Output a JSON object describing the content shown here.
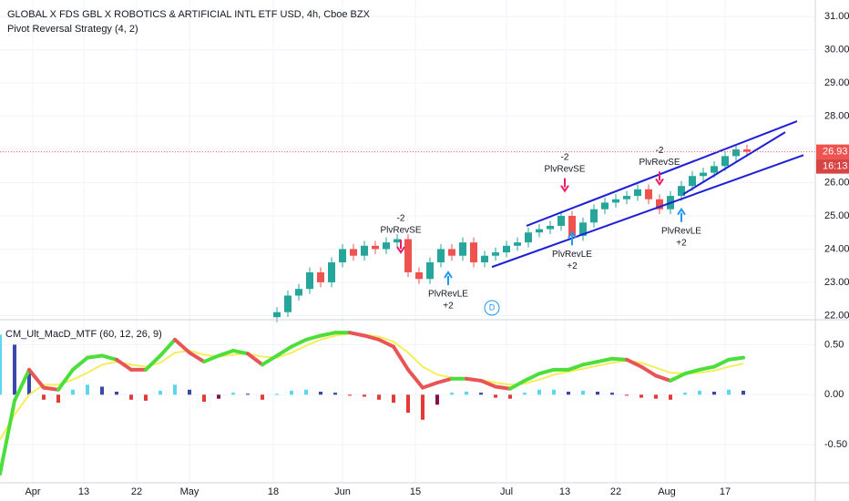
{
  "chart_data": [
    {
      "type": "candlestick",
      "title": "GLOBAL X FDS GBL X ROBOTICS & ARTIFICIAL INTL ETF USD, 4h, Cboe BZX",
      "subtitle": "Pivot Reversal Strategy (4, 2)",
      "x": [
        76,
        79,
        82,
        85,
        88,
        91,
        94,
        97,
        100,
        103,
        106,
        109,
        112,
        115,
        118,
        121,
        124,
        127,
        130,
        133,
        136,
        139,
        142,
        145,
        148,
        151,
        154,
        157,
        160,
        163,
        166,
        169,
        172,
        175,
        178,
        181,
        184,
        187,
        190,
        193,
        196,
        199,
        202,
        205
      ],
      "open": [
        21.95,
        22.1,
        22.6,
        22.8,
        23.3,
        23.0,
        23.6,
        24.0,
        23.8,
        24.1,
        24.0,
        24.2,
        24.3,
        23.3,
        23.1,
        23.6,
        24.0,
        23.8,
        24.2,
        23.6,
        23.8,
        23.9,
        24.1,
        24.2,
        24.5,
        24.6,
        24.7,
        25.0,
        24.4,
        24.8,
        25.2,
        25.4,
        25.5,
        25.6,
        25.8,
        25.5,
        25.2,
        25.6,
        25.9,
        26.2,
        26.3,
        26.5,
        26.8,
        27.0
      ],
      "high": [
        22.25,
        22.75,
        22.95,
        23.45,
        23.45,
        23.75,
        24.15,
        24.15,
        24.25,
        24.25,
        24.35,
        24.45,
        24.45,
        23.45,
        23.75,
        24.15,
        24.15,
        24.35,
        24.35,
        23.95,
        24.05,
        24.25,
        24.35,
        24.65,
        24.75,
        24.85,
        25.15,
        25.15,
        24.95,
        25.35,
        25.55,
        25.65,
        25.75,
        25.95,
        25.95,
        25.65,
        25.75,
        26.05,
        26.35,
        26.45,
        26.65,
        26.95,
        27.15,
        27.15
      ],
      "low": [
        21.8,
        21.95,
        22.45,
        22.65,
        22.85,
        22.85,
        23.45,
        23.65,
        23.65,
        23.85,
        23.85,
        24.05,
        23.15,
        22.95,
        22.95,
        23.45,
        23.65,
        23.65,
        23.45,
        23.45,
        23.65,
        23.75,
        23.95,
        24.05,
        24.35,
        24.45,
        24.55,
        24.25,
        24.25,
        24.65,
        25.05,
        25.25,
        25.35,
        25.45,
        25.35,
        25.05,
        25.05,
        25.45,
        25.75,
        26.05,
        26.15,
        26.35,
        26.65,
        26.78
      ],
      "close": [
        22.1,
        22.6,
        22.8,
        23.3,
        23.0,
        23.6,
        24.0,
        23.8,
        24.1,
        24.0,
        24.2,
        24.3,
        23.3,
        23.1,
        23.6,
        24.0,
        23.8,
        24.2,
        23.6,
        23.8,
        23.9,
        24.1,
        24.2,
        24.5,
        24.6,
        24.7,
        25.0,
        24.4,
        24.8,
        25.2,
        25.4,
        25.5,
        25.6,
        25.8,
        25.5,
        25.2,
        25.6,
        25.9,
        26.2,
        26.3,
        26.5,
        26.8,
        27.0,
        26.93
      ],
      "up_color": "#26a69a",
      "down_color": "#ef5350",
      "xlim": [
        0,
        223.75
      ],
      "xticks": [
        {
          "value": 9,
          "label": "Apr"
        },
        {
          "value": 23,
          "label": "13"
        },
        {
          "value": 37.5,
          "label": "22"
        },
        {
          "value": 52,
          "label": "May"
        },
        {
          "value": 75,
          "label": "18"
        },
        {
          "value": 94,
          "label": "Jun"
        },
        {
          "value": 114,
          "label": "15"
        },
        {
          "value": 139,
          "label": "Jul"
        },
        {
          "value": 155,
          "label": "13"
        },
        {
          "value": 169,
          "label": "22"
        },
        {
          "value": 183,
          "label": "Aug"
        },
        {
          "value": 199,
          "label": "17"
        }
      ],
      "ylim": [
        21.9,
        31.5
      ],
      "yticks": [
        {
          "value": 22,
          "label": "22.00"
        },
        {
          "value": 23,
          "label": "23.00"
        },
        {
          "value": 24,
          "label": "24.00"
        },
        {
          "value": 25,
          "label": "25.00"
        },
        {
          "value": 26,
          "label": "26.00"
        },
        {
          "value": 27,
          "label": "27.00"
        },
        {
          "value": 28,
          "label": "28.00"
        },
        {
          "value": 29,
          "label": "29.00"
        },
        {
          "value": 30,
          "label": "30.00"
        },
        {
          "value": 31,
          "label": "31.00"
        }
      ],
      "grid": true,
      "last_price": 26.93,
      "countdown": "16:13",
      "trendlines": [
        {
          "x": [
            144.5,
            218.75
          ],
          "y": [
            24.7,
            27.85
          ]
        },
        {
          "x": [
            135,
            220.5
          ],
          "y": [
            23.46,
            26.83
          ]
        },
        {
          "x": [
            187.5,
            215.5
          ],
          "y": [
            25.65,
            27.52
          ]
        }
      ],
      "trendline_color": "#1f1fd6",
      "annotations": [
        {
          "x": 110,
          "price": 23.9,
          "side": "short",
          "label": "PlvRevSE",
          "qty": "-2"
        },
        {
          "x": 123,
          "price": 23.3,
          "side": "long",
          "label": "PlvRevLE",
          "qty": "+2"
        },
        {
          "x": 155,
          "price": 25.75,
          "side": "short",
          "label": "PlvRevSE",
          "qty": "-2"
        },
        {
          "x": 157,
          "price": 24.5,
          "side": "long",
          "label": "PlvRevLE",
          "qty": "+2"
        },
        {
          "x": 181,
          "price": 25.95,
          "side": "short",
          "label": "PlvRevSE",
          "qty": "-2"
        },
        {
          "x": 187,
          "price": 25.2,
          "side": "long",
          "label": "PlvRevLE",
          "qty": "+2"
        }
      ],
      "marker": {
        "x": 135,
        "label": "D"
      }
    },
    {
      "type": "macd",
      "title": "CM_Ult_MacD_MTF (60, 12, 26, 9)",
      "x": [
        0,
        4,
        8,
        12,
        16,
        20,
        24,
        28,
        32,
        36,
        40,
        44,
        48,
        52,
        56,
        60,
        64,
        68,
        72,
        76,
        80,
        84,
        88,
        92,
        96,
        100,
        104,
        108,
        112,
        116,
        120,
        124,
        128,
        132,
        136,
        140,
        144,
        148,
        152,
        156,
        160,
        164,
        168,
        172,
        176,
        180,
        184,
        188,
        192,
        196,
        200,
        204
      ],
      "macd": [
        -0.79,
        -0.06,
        0.25,
        0.07,
        0.05,
        0.25,
        0.37,
        0.39,
        0.35,
        0.25,
        0.25,
        0.39,
        0.55,
        0.42,
        0.33,
        0.39,
        0.44,
        0.41,
        0.3,
        0.39,
        0.48,
        0.55,
        0.59,
        0.62,
        0.62,
        0.59,
        0.55,
        0.48,
        0.25,
        0.07,
        0.12,
        0.16,
        0.16,
        0.14,
        0.08,
        0.06,
        0.14,
        0.21,
        0.25,
        0.25,
        0.3,
        0.33,
        0.36,
        0.35,
        0.28,
        0.19,
        0.14,
        0.21,
        0.25,
        0.28,
        0.35,
        0.37
      ],
      "signal": [
        -0.45,
        -0.2,
        0.0,
        0.1,
        0.1,
        0.15,
        0.22,
        0.3,
        0.33,
        0.3,
        0.28,
        0.32,
        0.42,
        0.44,
        0.4,
        0.38,
        0.4,
        0.41,
        0.38,
        0.37,
        0.42,
        0.49,
        0.55,
        0.59,
        0.61,
        0.6,
        0.58,
        0.53,
        0.42,
        0.28,
        0.2,
        0.17,
        0.16,
        0.15,
        0.12,
        0.1,
        0.11,
        0.15,
        0.2,
        0.23,
        0.26,
        0.29,
        0.32,
        0.34,
        0.32,
        0.27,
        0.22,
        0.21,
        0.22,
        0.24,
        0.28,
        0.31
      ],
      "histogram": [
        0.6,
        0.5,
        0.25,
        -0.05,
        -0.08,
        0.05,
        0.1,
        0.08,
        0.03,
        -0.05,
        -0.06,
        0.04,
        0.1,
        0.05,
        -0.07,
        -0.04,
        0.02,
        0.01,
        -0.05,
        0.01,
        0.04,
        0.05,
        0.03,
        0.02,
        -0.01,
        -0.02,
        -0.05,
        -0.08,
        -0.18,
        -0.25,
        -0.1,
        0.02,
        0.03,
        0.02,
        -0.03,
        -0.04,
        0.02,
        0.05,
        0.05,
        0.03,
        0.04,
        0.03,
        0.02,
        -0.01,
        -0.03,
        -0.04,
        -0.05,
        0.02,
        0.04,
        0.03,
        0.05,
        0.04
      ],
      "macd_up_color": "#4cde3a",
      "macd_down_color": "#e95454",
      "signal_color": "#f4ee5a",
      "hist_colors": {
        "up_rising": "#5ad7ec",
        "up_falling": "#3949ab",
        "down_falling": "#e53935",
        "down_rising": "#880e4f"
      },
      "ylim": [
        -0.88,
        0.74
      ],
      "yticks": [
        {
          "value": -0.5,
          "label": "-0.50"
        },
        {
          "value": 0,
          "label": "0.00"
        },
        {
          "value": 0.5,
          "label": "0.50"
        }
      ]
    }
  ]
}
